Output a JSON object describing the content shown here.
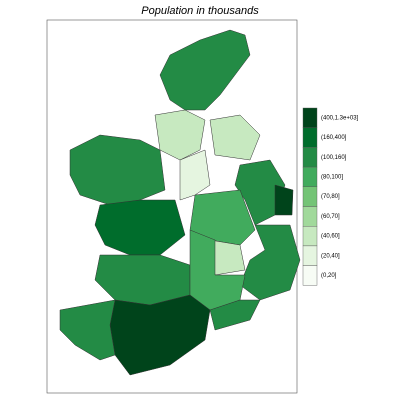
{
  "title": "Population in thousands",
  "legend": [
    {
      "label": "(400,1.3e+03]",
      "color": "#00441b"
    },
    {
      "label": "(160,400]",
      "color": "#006d2c"
    },
    {
      "label": "(100,160]",
      "color": "#238b45"
    },
    {
      "label": "(80,100]",
      "color": "#41ab5d"
    },
    {
      "label": "(70,80]",
      "color": "#74c476"
    },
    {
      "label": "(60,70]",
      "color": "#a1d99b"
    },
    {
      "label": "(40,60]",
      "color": "#c7e9c0"
    },
    {
      "label": "(20,40]",
      "color": "#e5f5e0"
    },
    {
      "label": "(0,20]",
      "color": "#f7fcf5"
    }
  ]
}
